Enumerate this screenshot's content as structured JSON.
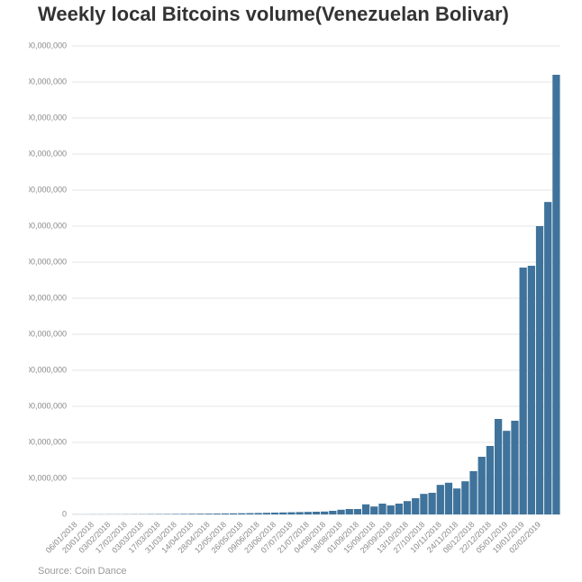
{
  "chart_data": {
    "type": "bar",
    "title": "Weekly local Bitcoins volume(Venezuelan Bolivar)",
    "source": "Source: Coin Dance",
    "color": "#3f739b",
    "grid": true,
    "categories": [
      "06/01/2018",
      null,
      "20/01/2018",
      null,
      "03/02/2018",
      null,
      "17/02/2018",
      null,
      "03/03/2018",
      null,
      "17/03/2018",
      null,
      "31/03/2018",
      null,
      "14/04/2018",
      null,
      "28/04/2018",
      null,
      "12/05/2018",
      null,
      "26/05/2018",
      null,
      "09/06/2018",
      null,
      "23/06/2018",
      null,
      "07/07/2018",
      null,
      "21/07/2018",
      null,
      "04/08/2018",
      null,
      "18/08/2018",
      null,
      "01/09/2018",
      null,
      "15/09/2018",
      null,
      "29/09/2018",
      null,
      "13/10/2018",
      null,
      "27/10/2018",
      null,
      "10/11/2018",
      null,
      "24/11/2018",
      null,
      "08/12/2018",
      null,
      "22/12/2018",
      null,
      "05/01/2019",
      null,
      "19/01/2019",
      null,
      "02/02/2019",
      null,
      null
    ],
    "values": [
      300000,
      300000,
      400000,
      400000,
      500000,
      500000,
      600000,
      700000,
      800000,
      1000000,
      1100000,
      1200000,
      1400000,
      1600000,
      1800000,
      2000000,
      2200000,
      2400000,
      2700000,
      3000000,
      3300000,
      3600000,
      4000000,
      4500000,
      5000000,
      5500000,
      6000000,
      6500000,
      7000000,
      7500000,
      8000000,
      10000000,
      13000000,
      15000000,
      15000000,
      28000000,
      22000000,
      30000000,
      25000000,
      30000000,
      37000000,
      45000000,
      57000000,
      60000000,
      82000000,
      88000000,
      72000000,
      92000000,
      120000000,
      160000000,
      190000000,
      265000000,
      232000000,
      260000000,
      685000000,
      690000000,
      800000000,
      867000000,
      1220000000
    ],
    "ylim": [
      0,
      1300000000
    ],
    "yticks": [
      0,
      {
        "value": 100000000,
        "label": "100,000,000"
      },
      {
        "value": 200000000,
        "label": "200,000,000"
      },
      {
        "value": 300000000,
        "label": "300,000,000"
      },
      {
        "value": 400000000,
        "label": "400,000,000"
      },
      {
        "value": 500000000,
        "label": "500,000,000"
      },
      {
        "value": 600000000,
        "label": "600,000,000"
      },
      {
        "value": 700000000,
        "label": "700,000,000"
      },
      {
        "value": 800000000,
        "label": "800,000,000"
      },
      {
        "value": 900000000,
        "label": "900,000,000"
      },
      {
        "value": 1000000000,
        "label": "1,000,000,000"
      },
      {
        "value": 1100000000,
        "label": "1,100,000,000"
      },
      {
        "value": 1200000000,
        "label": "1,200,000,000"
      },
      {
        "value": 1300000000,
        "label": "1,300,000,000"
      }
    ]
  }
}
